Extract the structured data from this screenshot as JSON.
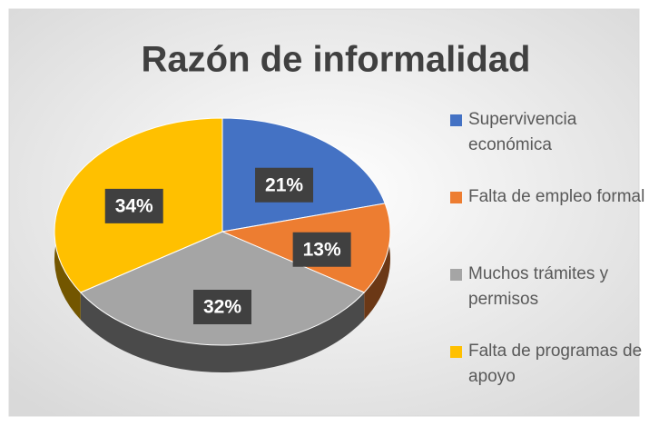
{
  "chart_data": {
    "type": "pie",
    "title": "Razón de informalidad",
    "categories": [
      "Supervivencia económica",
      "Falta de empleo formal",
      "Muchos trámites y permisos",
      "Falta de programas de apoyo"
    ],
    "values": [
      21,
      13,
      32,
      34
    ],
    "value_labels": [
      "21%",
      "13%",
      "32%",
      "34%"
    ],
    "colors": [
      "#4472c4",
      "#ed7d31",
      "#a5a5a5",
      "#ffc000"
    ],
    "legend": "right"
  }
}
